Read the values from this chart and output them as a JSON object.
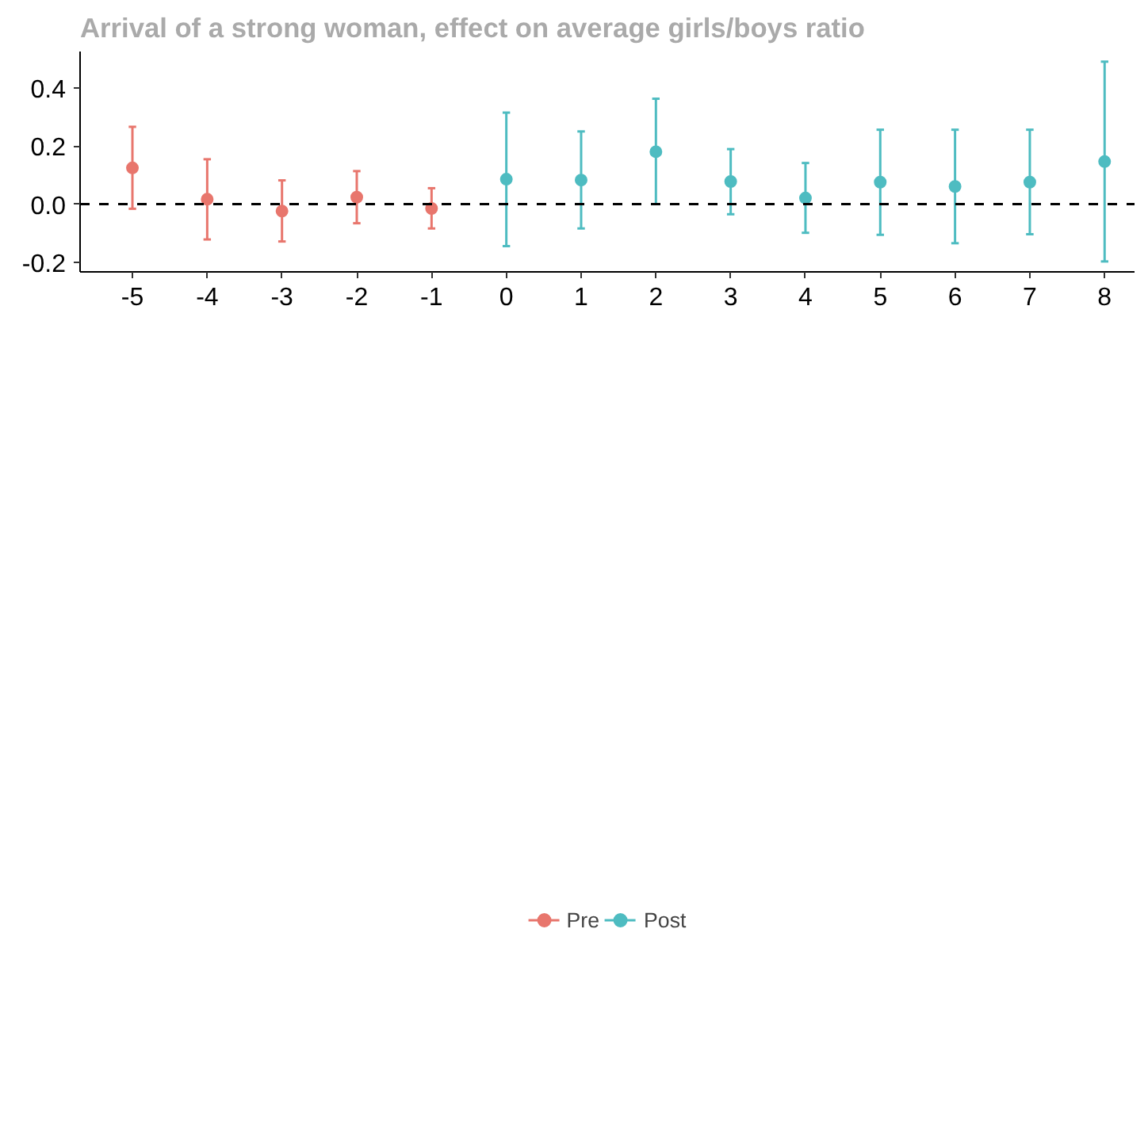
{
  "chart_data": {
    "type": "scatter",
    "title": "Arrival of a strong woman, effect on average girls/boys ratio",
    "xlim": [
      -5.7,
      8.4
    ],
    "xticks": [
      -5,
      -4,
      -3,
      -2,
      -1,
      0,
      1,
      2,
      3,
      4,
      5,
      6,
      7,
      8
    ],
    "ylim": [
      -0.234,
      0.527
    ],
    "yticks": [
      {
        "value": -0.2,
        "label": "-0.2"
      },
      {
        "value": 0.0,
        "label": "0.0"
      },
      {
        "value": 0.2,
        "label": "0.2"
      },
      {
        "value": 0.4,
        "label": "0.4"
      }
    ],
    "grid": false,
    "legend": "bottom",
    "marker": "circle",
    "series": [
      {
        "name": "Pre",
        "color": "#e8766d",
        "x": [
          -5,
          -4,
          -3,
          -2,
          -1
        ],
        "values": [
          0.125,
          0.017,
          -0.024,
          0.024,
          -0.015
        ],
        "errors": [
          [
            -0.016,
            0.267
          ],
          [
            -0.122,
            0.155
          ],
          [
            -0.129,
            0.082
          ],
          [
            -0.066,
            0.114
          ],
          [
            -0.084,
            0.055
          ]
        ]
      },
      {
        "name": "Post",
        "color": "#4ebcc1",
        "x": [
          0,
          1,
          2,
          3,
          4,
          5,
          6,
          7,
          8
        ],
        "values": [
          0.086,
          0.083,
          0.181,
          0.078,
          0.021,
          0.076,
          0.061,
          0.076,
          0.147
        ],
        "errors": [
          [
            -0.145,
            0.316
          ],
          [
            -0.084,
            0.251
          ],
          [
            0.0,
            0.364
          ],
          [
            -0.035,
            0.19
          ],
          [
            -0.099,
            0.142
          ],
          [
            -0.106,
            0.257
          ],
          [
            -0.135,
            0.257
          ],
          [
            -0.104,
            0.257
          ],
          [
            -0.198,
            0.492
          ]
        ]
      }
    ],
    "ref_lines": [
      {
        "axis": "y",
        "value": 0,
        "color": "#000000",
        "line_style": "dashed"
      }
    ]
  }
}
